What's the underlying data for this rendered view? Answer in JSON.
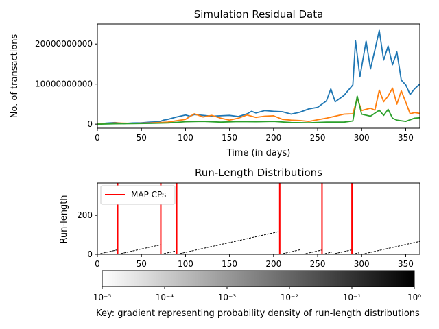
{
  "chart_data": [
    {
      "type": "line",
      "title": "Simulation Residual Data",
      "xlabel": "Time (in days)",
      "ylabel": "No. of transactions",
      "xlim": [
        0,
        366
      ],
      "ylim": [
        -1000000000,
        25000000000
      ],
      "xticks": [
        0,
        50,
        100,
        150,
        200,
        250,
        300,
        350
      ],
      "yticks": [
        0,
        10000000000,
        20000000000
      ],
      "ytick_labels": [
        "0",
        "10000000000",
        "20000000000"
      ],
      "grid": false,
      "series_colors": [
        "#1f77b4",
        "#ff7f0e",
        "#2ca02c"
      ],
      "series": [
        {
          "x": [
            0,
            10,
            20,
            30,
            40,
            50,
            60,
            70,
            75,
            80,
            90,
            100,
            105,
            110,
            120,
            130,
            140,
            150,
            160,
            170,
            175,
            180,
            190,
            200,
            210,
            220,
            230,
            240,
            250,
            260,
            265,
            270,
            280,
            290,
            293,
            298,
            305,
            310,
            315,
            320,
            325,
            330,
            335,
            340,
            345,
            350,
            355,
            360,
            366
          ],
          "values": [
            0,
            250000000,
            400000000,
            150000000,
            300000000,
            350000000,
            500000000,
            600000000,
            1000000000,
            1200000000,
            1800000000,
            2300000000,
            2000000000,
            2400000000,
            2200000000,
            2000000000,
            2100000000,
            2200000000,
            1900000000,
            2600000000,
            3200000000,
            2800000000,
            3400000000,
            3200000000,
            3100000000,
            2500000000,
            3000000000,
            3800000000,
            4200000000,
            5800000000,
            8800000000,
            5600000000,
            7200000000,
            9800000000,
            20800000000,
            11800000000,
            20700000000,
            13800000000,
            18500000000,
            23400000000,
            16000000000,
            19500000000,
            14800000000,
            18000000000,
            11000000000,
            9800000000,
            7400000000,
            8800000000,
            10000000000
          ]
        },
        {
          "x": [
            0,
            20,
            40,
            60,
            80,
            100,
            110,
            120,
            130,
            140,
            150,
            160,
            170,
            180,
            190,
            200,
            210,
            220,
            230,
            240,
            250,
            260,
            270,
            280,
            290,
            295,
            300,
            310,
            315,
            320,
            325,
            330,
            335,
            340,
            345,
            350,
            355,
            360,
            366
          ],
          "values": [
            0,
            300000000,
            200000000,
            300000000,
            500000000,
            1200000000,
            2600000000,
            1800000000,
            2200000000,
            1500000000,
            1000000000,
            1500000000,
            2300000000,
            1700000000,
            2000000000,
            2100000000,
            1200000000,
            1000000000,
            900000000,
            700000000,
            1100000000,
            1500000000,
            2000000000,
            2500000000,
            2600000000,
            6500000000,
            3400000000,
            4000000000,
            3500000000,
            8500000000,
            5600000000,
            7000000000,
            9000000000,
            5000000000,
            8300000000,
            5500000000,
            2600000000,
            2900000000,
            2700000000
          ]
        },
        {
          "x": [
            0,
            20,
            40,
            60,
            80,
            100,
            120,
            140,
            160,
            180,
            200,
            220,
            240,
            260,
            280,
            290,
            295,
            300,
            310,
            320,
            325,
            330,
            335,
            340,
            350,
            360,
            366
          ],
          "values": [
            0,
            100000000,
            150000000,
            200000000,
            300000000,
            600000000,
            700000000,
            500000000,
            650000000,
            600000000,
            700000000,
            400000000,
            350000000,
            500000000,
            500000000,
            800000000,
            7000000000,
            2500000000,
            2000000000,
            3500000000,
            2200000000,
            3700000000,
            1500000000,
            1000000000,
            700000000,
            1500000000,
            1600000000
          ]
        }
      ]
    },
    {
      "type": "heatmap",
      "title": "Run-Length Distributions",
      "xlabel": "",
      "ylabel": "Run-length",
      "xlim": [
        0,
        366
      ],
      "ylim": [
        0,
        366
      ],
      "xticks": [
        0,
        50,
        100,
        150,
        200,
        250,
        300,
        350
      ],
      "yticks": [
        0,
        200
      ],
      "run_segments": [
        {
          "start": 0,
          "end": 23
        },
        {
          "start": 23,
          "end": 72
        },
        {
          "start": 72,
          "end": 90
        },
        {
          "start": 90,
          "end": 207
        },
        {
          "start": 207,
          "end": 230
        },
        {
          "start": 233,
          "end": 255
        },
        {
          "start": 255,
          "end": 266
        },
        {
          "start": 266,
          "end": 289
        },
        {
          "start": 289,
          "end": 297
        },
        {
          "start": 300,
          "end": 366
        }
      ],
      "map_changepoints": [
        23,
        72,
        90,
        207,
        255,
        289
      ],
      "changepoint_color": "#ff0000",
      "legend": {
        "label": "MAP CPs",
        "placement": "top-left"
      },
      "colorbar": {
        "scale": "log",
        "range": [
          1e-05,
          1
        ],
        "ticks": [
          "10⁻⁵",
          "10⁻⁴",
          "10⁻³",
          "10⁻²",
          "10⁻¹",
          "10⁰"
        ],
        "label": "Key: gradient representing probability density of run-length distributions",
        "colormap": "white-to-black"
      }
    }
  ]
}
